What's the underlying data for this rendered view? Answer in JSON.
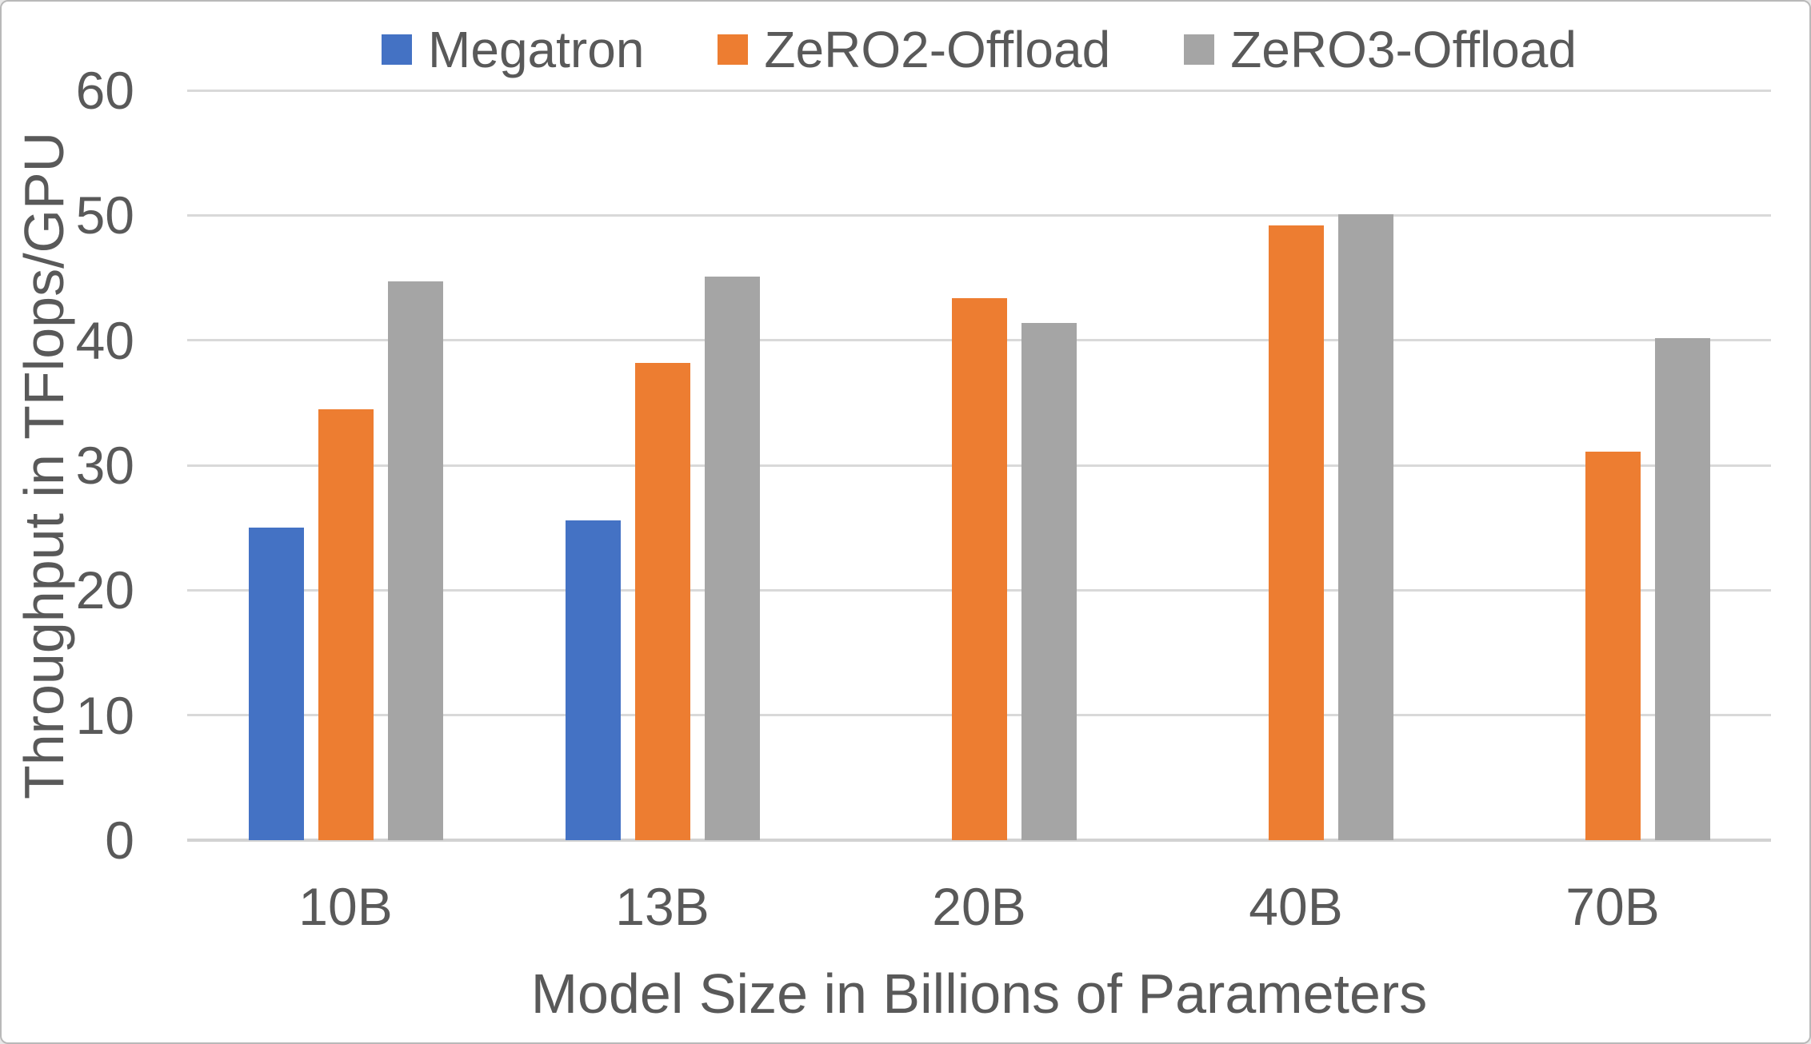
{
  "chart_data": {
    "type": "bar",
    "title": "",
    "categories": [
      "10B",
      "13B",
      "20B",
      "40B",
      "70B"
    ],
    "series": [
      {
        "name": "Megatron",
        "color": "#4472C4",
        "values": [
          25.0,
          25.6,
          0,
          0,
          0
        ]
      },
      {
        "name": "ZeRO2-Offload",
        "color": "#ED7D31",
        "values": [
          34.5,
          38.2,
          43.4,
          49.2,
          31.1
        ]
      },
      {
        "name": "ZeRO3-Offload",
        "color": "#A5A5A5",
        "values": [
          44.7,
          45.1,
          41.4,
          50.1,
          40.2
        ]
      }
    ],
    "xlabel": "Model Size in Billions of Parameters",
    "ylabel": "Throughput in TFlops/GPU",
    "ylim": [
      0,
      60
    ],
    "yticks": [
      0,
      10,
      20,
      30,
      40,
      50,
      60
    ],
    "grid": true,
    "legend_position": "top",
    "colors": {
      "gridline": "#d9d9d9",
      "axis_line": "#d2d2d2",
      "text": "#595959",
      "background": "#ffffff"
    }
  }
}
